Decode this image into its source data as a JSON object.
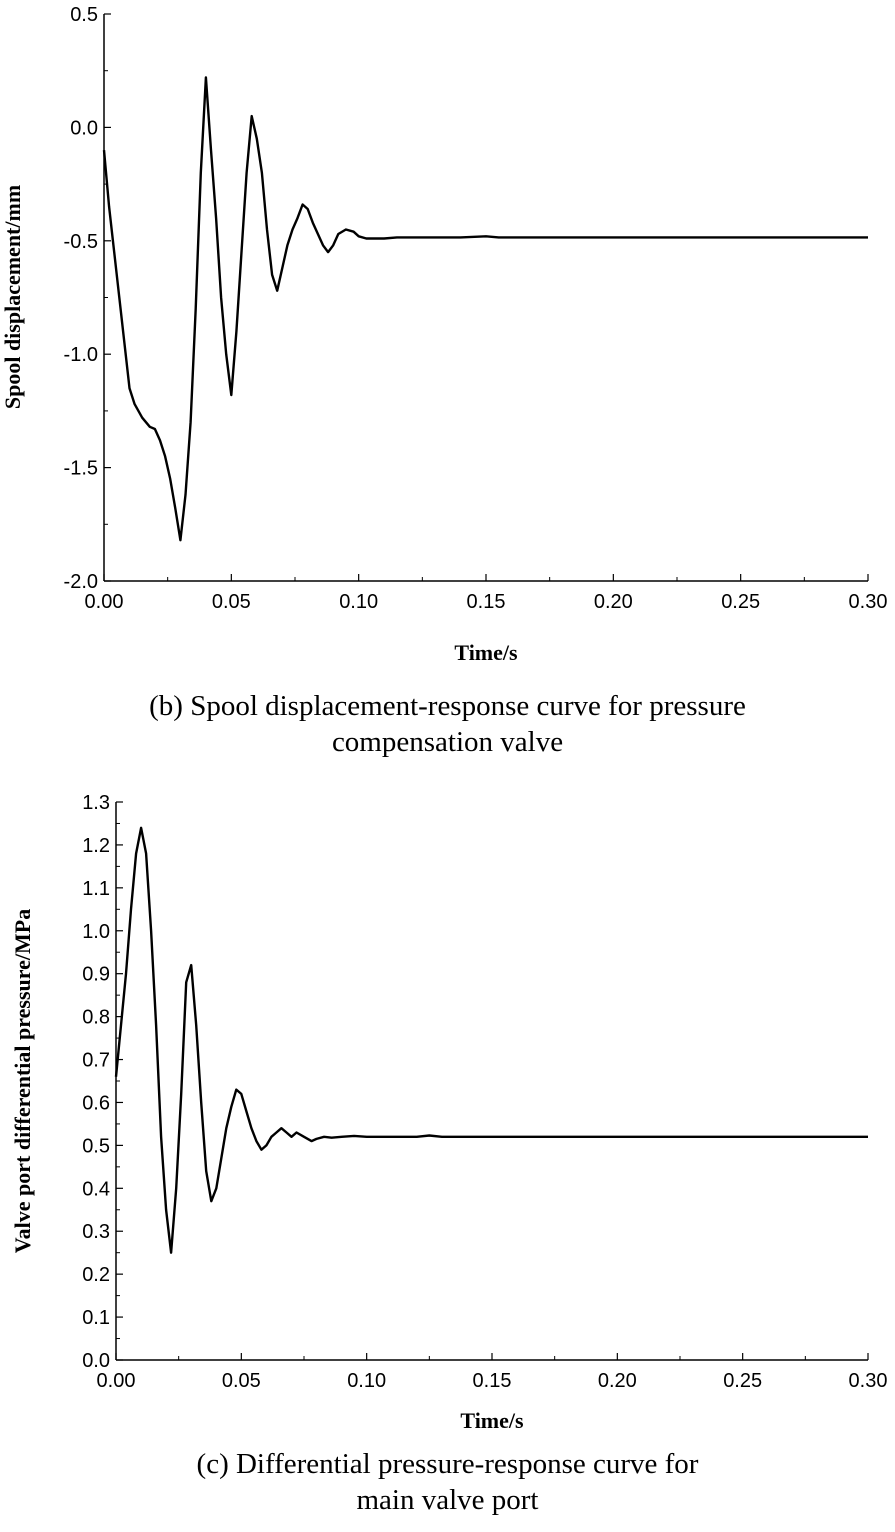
{
  "chart_data": [
    {
      "type": "line",
      "title": "",
      "caption": [
        "(b) Spool displacement-response curve for pressure",
        "compensation valve"
      ],
      "xlabel": "Time/s",
      "ylabel": "Spool displacement/mm",
      "xlim": [
        0,
        0.3
      ],
      "ylim": [
        -2.0,
        0.5
      ],
      "xticks": [
        "0.00",
        "0.05",
        "0.10",
        "0.15",
        "0.20",
        "0.25",
        "0.30"
      ],
      "yticks": [
        "-2.0",
        "-1.5",
        "-1.0",
        "-0.5",
        "0.0",
        "0.5"
      ],
      "series": [
        {
          "name": "spool displacement",
          "x": [
            0,
            0.002,
            0.004,
            0.006,
            0.008,
            0.01,
            0.012,
            0.015,
            0.018,
            0.02,
            0.022,
            0.024,
            0.026,
            0.028,
            0.03,
            0.032,
            0.034,
            0.036,
            0.038,
            0.04,
            0.042,
            0.044,
            0.046,
            0.048,
            0.05,
            0.052,
            0.054,
            0.056,
            0.058,
            0.06,
            0.062,
            0.064,
            0.066,
            0.068,
            0.07,
            0.072,
            0.074,
            0.076,
            0.078,
            0.08,
            0.082,
            0.084,
            0.086,
            0.088,
            0.09,
            0.092,
            0.095,
            0.098,
            0.1,
            0.103,
            0.106,
            0.11,
            0.115,
            0.12,
            0.13,
            0.14,
            0.15,
            0.155,
            0.16,
            0.2,
            0.25,
            0.3
          ],
          "y": [
            -0.1,
            -0.35,
            -0.55,
            -0.75,
            -0.95,
            -1.15,
            -1.22,
            -1.28,
            -1.32,
            -1.33,
            -1.38,
            -1.45,
            -1.55,
            -1.68,
            -1.82,
            -1.62,
            -1.3,
            -0.8,
            -0.2,
            0.22,
            -0.1,
            -0.4,
            -0.75,
            -1.0,
            -1.18,
            -0.9,
            -0.55,
            -0.2,
            0.05,
            -0.05,
            -0.2,
            -0.45,
            -0.65,
            -0.72,
            -0.62,
            -0.52,
            -0.45,
            -0.4,
            -0.34,
            -0.36,
            -0.42,
            -0.47,
            -0.52,
            -0.55,
            -0.52,
            -0.47,
            -0.45,
            -0.46,
            -0.48,
            -0.49,
            -0.49,
            -0.49,
            -0.485,
            -0.485,
            -0.485,
            -0.485,
            -0.48,
            -0.485,
            -0.485,
            -0.485,
            -0.485,
            -0.485
          ]
        }
      ]
    },
    {
      "type": "line",
      "title": "",
      "caption": [
        "(c) Differential pressure-response curve for",
        "main valve port"
      ],
      "xlabel": "Time/s",
      "ylabel": "Valve port differential pressure/MPa",
      "xlim": [
        0,
        0.3
      ],
      "ylim": [
        0,
        1.3
      ],
      "xticks": [
        "0.00",
        "0.05",
        "0.10",
        "0.15",
        "0.20",
        "0.25",
        "0.30"
      ],
      "yticks": [
        "0.0",
        "0.1",
        "0.2",
        "0.3",
        "0.4",
        "0.5",
        "0.6",
        "0.7",
        "0.8",
        "0.9",
        "1.0",
        "1.1",
        "1.2",
        "1.3"
      ],
      "series": [
        {
          "name": "differential pressure",
          "x": [
            0,
            0.002,
            0.004,
            0.006,
            0.008,
            0.01,
            0.012,
            0.014,
            0.016,
            0.018,
            0.02,
            0.022,
            0.024,
            0.026,
            0.028,
            0.03,
            0.032,
            0.034,
            0.036,
            0.038,
            0.04,
            0.042,
            0.044,
            0.046,
            0.048,
            0.05,
            0.052,
            0.054,
            0.056,
            0.058,
            0.06,
            0.062,
            0.064,
            0.066,
            0.068,
            0.07,
            0.072,
            0.075,
            0.078,
            0.08,
            0.083,
            0.086,
            0.09,
            0.095,
            0.1,
            0.11,
            0.12,
            0.125,
            0.13,
            0.2,
            0.25,
            0.3
          ],
          "y": [
            0.66,
            0.78,
            0.9,
            1.05,
            1.18,
            1.24,
            1.18,
            1.0,
            0.78,
            0.52,
            0.35,
            0.25,
            0.4,
            0.62,
            0.88,
            0.92,
            0.78,
            0.6,
            0.44,
            0.37,
            0.4,
            0.47,
            0.54,
            0.59,
            0.63,
            0.62,
            0.58,
            0.54,
            0.51,
            0.49,
            0.5,
            0.52,
            0.53,
            0.54,
            0.53,
            0.52,
            0.53,
            0.52,
            0.51,
            0.515,
            0.52,
            0.518,
            0.52,
            0.522,
            0.52,
            0.52,
            0.52,
            0.523,
            0.52,
            0.52,
            0.52,
            0.52
          ]
        }
      ]
    }
  ]
}
